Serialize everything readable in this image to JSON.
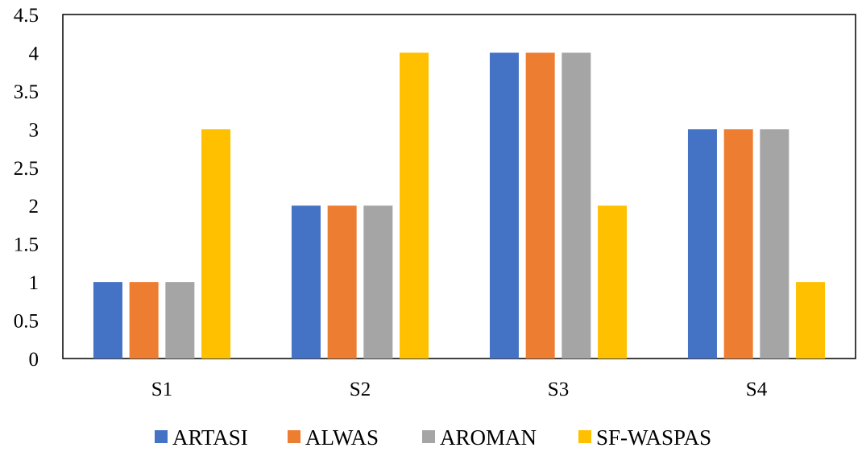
{
  "chart_data": {
    "type": "bar",
    "title": "",
    "xlabel": "",
    "ylabel": "",
    "categories": [
      "S1",
      "S2",
      "S3",
      "S4"
    ],
    "series": [
      {
        "name": "ARTASI",
        "color": "#4472C4",
        "values": [
          1,
          2,
          4,
          3
        ]
      },
      {
        "name": "ALWAS",
        "color": "#ED7D31",
        "values": [
          1,
          2,
          4,
          3
        ]
      },
      {
        "name": "AROMAN",
        "color": "#A5A5A5",
        "values": [
          1,
          2,
          4,
          3
        ]
      },
      {
        "name": "SF-WASPAS",
        "color": "#FFC000",
        "values": [
          3,
          4,
          2,
          1
        ]
      }
    ],
    "ylim": [
      0,
      4.5
    ],
    "yticks": [
      "0",
      "0.5",
      "1",
      "1.5",
      "2",
      "2.5",
      "3",
      "3.5",
      "4",
      "4.5"
    ],
    "grid": false,
    "legend": "bottom"
  }
}
